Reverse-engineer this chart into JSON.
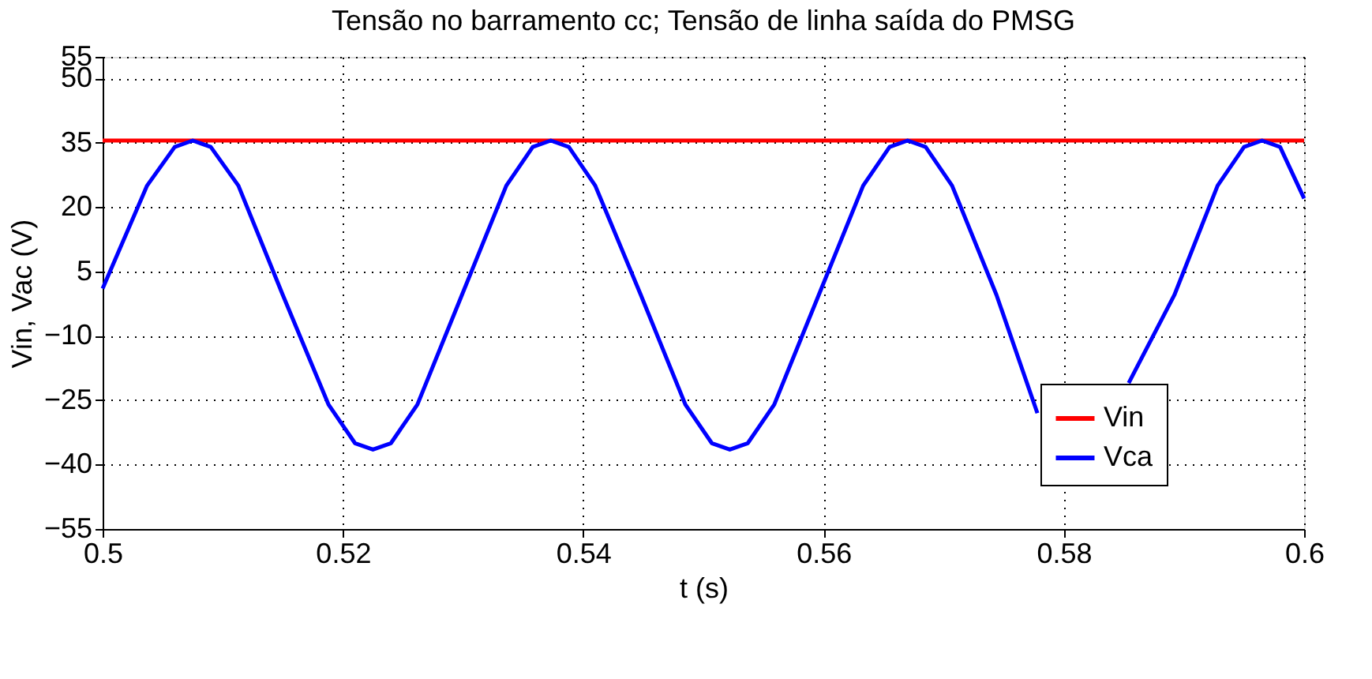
{
  "chart_data": {
    "type": "line",
    "title": "Tensão no barramento cc; Tensão de linha saída do PMSG",
    "xlabel": "t (s)",
    "ylabel": "Vin, Vac (V)",
    "xlim": [
      0.5,
      0.6
    ],
    "xticks": [
      0.5,
      0.52,
      0.54,
      0.56,
      0.58,
      0.6
    ],
    "ylim": [
      -55,
      55
    ],
    "yticks": [
      -55,
      -40,
      -25,
      -10,
      5,
      20,
      35,
      50,
      55
    ],
    "grid": true,
    "legend": "bottom right",
    "line_style": "solid",
    "series": [
      {
        "name": "Vin",
        "color": "#ff0000",
        "x": [
          0.5,
          0.525,
          0.55,
          0.575,
          0.6
        ],
        "values": [
          35.5,
          35.5,
          35.5,
          35.5,
          35.5
        ]
      },
      {
        "name": "Vca",
        "color": "#0000ff",
        "x": [
          0.5,
          0.5037,
          0.506,
          0.5075,
          0.509,
          0.5113,
          0.515,
          0.5188,
          0.521,
          0.5225,
          0.524,
          0.5262,
          0.5299,
          0.5336,
          0.5358,
          0.5373,
          0.5388,
          0.541,
          0.5448,
          0.5485,
          0.5507,
          0.5522,
          0.5537,
          0.5559,
          0.5596,
          0.5633,
          0.5655,
          0.567,
          0.5685,
          0.5707,
          0.5744,
          0.5778,
          0.5781,
          0.5803,
          0.5818,
          0.5833,
          0.5854,
          0.5892,
          0.5928,
          0.595,
          0.5965,
          0.598,
          0.6
        ],
        "values": [
          1,
          25,
          34,
          35.5,
          34,
          25,
          -0.5,
          -26,
          -35,
          -36.5,
          -35,
          -26,
          -0.5,
          25,
          34,
          35.5,
          34,
          25,
          -0.5,
          -26,
          -35,
          -36.5,
          -35,
          -26,
          -0.5,
          25,
          34,
          35.5,
          34,
          25,
          -0.5,
          -28,
          null,
          null,
          null,
          null,
          -21,
          -0.5,
          25,
          34,
          35.5,
          34,
          22
        ]
      }
    ]
  }
}
